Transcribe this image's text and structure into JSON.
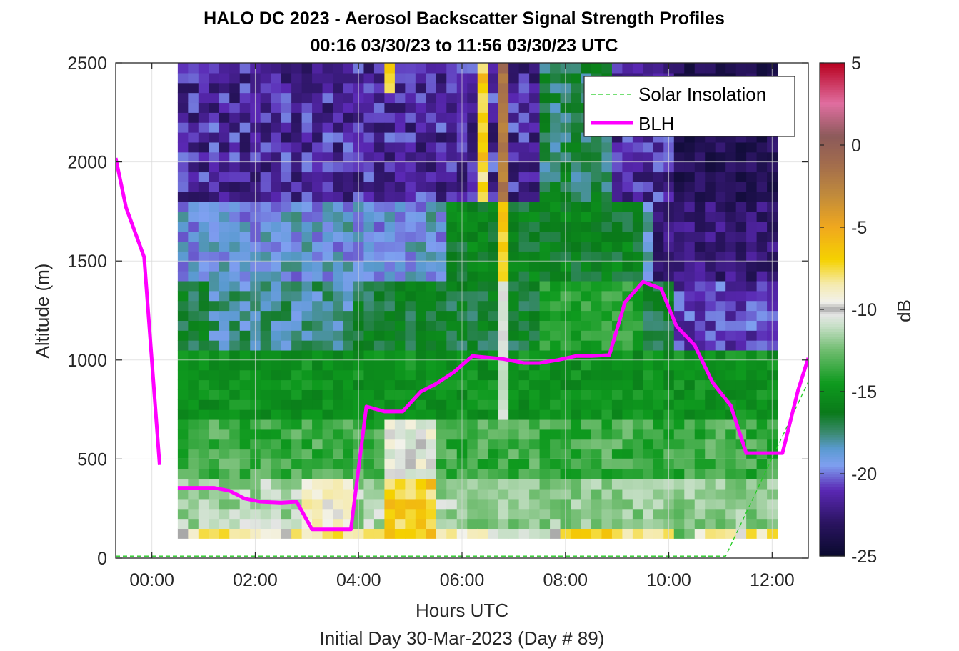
{
  "chart_data": {
    "type": "heatmap",
    "title": "HALO DC 2023 - Aerosol Backscatter Signal Strength Profiles",
    "subtitle": "00:16 03/30/23 to 11:56 03/30/23  UTC",
    "xlabel": "Hours UTC",
    "xlabel2": "Initial Day 30-Mar-2023 (Day # 89)",
    "ylabel": "Altitude (m)",
    "colorbar_label": "dB",
    "xlim": [
      -0.7,
      12.7
    ],
    "ylim": [
      0,
      2500
    ],
    "clim": [
      -25,
      5
    ],
    "grid": true,
    "legend_position": "top-right",
    "x_ticks": [
      {
        "value": 0,
        "label": "00:00"
      },
      {
        "value": 2,
        "label": "02:00"
      },
      {
        "value": 4,
        "label": "04:00"
      },
      {
        "value": 6,
        "label": "06:00"
      },
      {
        "value": 8,
        "label": "08:00"
      },
      {
        "value": 10,
        "label": "10:00"
      },
      {
        "value": 12,
        "label": "12:00"
      }
    ],
    "y_ticks": [
      {
        "value": 0,
        "label": "0"
      },
      {
        "value": 500,
        "label": "500"
      },
      {
        "value": 1000,
        "label": "1000"
      },
      {
        "value": 1500,
        "label": "1500"
      },
      {
        "value": 2000,
        "label": "2000"
      },
      {
        "value": 2500,
        "label": "2500"
      }
    ],
    "colorbar_ticks": [
      {
        "value": 5,
        "label": "5"
      },
      {
        "value": 0,
        "label": "0"
      },
      {
        "value": -5,
        "label": "-5"
      },
      {
        "value": -10,
        "label": "-10"
      },
      {
        "value": -15,
        "label": "-15"
      },
      {
        "value": -20,
        "label": "-20"
      },
      {
        "value": -25,
        "label": "-25"
      }
    ],
    "colormap": [
      {
        "value": -25,
        "color": "#0a0a2e"
      },
      {
        "value": -23,
        "color": "#2a1460"
      },
      {
        "value": -21,
        "color": "#5a28b4"
      },
      {
        "value": -19.5,
        "color": "#7ea0f0"
      },
      {
        "value": -18.5,
        "color": "#5a9ad0"
      },
      {
        "value": -17.5,
        "color": "#3a8a6e"
      },
      {
        "value": -16.3,
        "color": "#0a7a1a"
      },
      {
        "value": -14.5,
        "color": "#0e9a1e"
      },
      {
        "value": -12.5,
        "color": "#6ebc6e"
      },
      {
        "value": -11,
        "color": "#c8e0c8"
      },
      {
        "value": -10.3,
        "color": "#e6e6e6"
      },
      {
        "value": -10,
        "color": "#a8a8a8"
      },
      {
        "value": -9.6,
        "color": "#f2f2ec"
      },
      {
        "value": -8.5,
        "color": "#f5ebb0"
      },
      {
        "value": -7,
        "color": "#f5d200"
      },
      {
        "value": -5,
        "color": "#f0a81e"
      },
      {
        "value": -3,
        "color": "#c08a3c"
      },
      {
        "value": -1,
        "color": "#a06a4e"
      },
      {
        "value": 0.5,
        "color": "#8c5a5a"
      },
      {
        "value": 2.5,
        "color": "#e06ea0"
      },
      {
        "value": 5,
        "color": "#b8001e"
      }
    ],
    "heatmap_grid": {
      "x_start": 0.5,
      "x_step": 0.2,
      "y_start": 100,
      "y_step": 50,
      "notes_rows": "rows listed bottom (100-150 m) to top (2450-2500 m); columns every 0.2 h from 00:30 to 11:58; null = no data"
    },
    "series": [
      {
        "name": "BLH",
        "color": "#ff00ff",
        "segments": [
          [
            [
              -0.7,
              2020
            ],
            [
              -0.5,
              1770
            ],
            [
              -0.15,
              1520
            ],
            [
              0.15,
              470
            ]
          ],
          [
            [
              0.5,
              355
            ],
            [
              1.2,
              355
            ],
            [
              1.5,
              340
            ],
            [
              1.8,
              300
            ],
            [
              2.1,
              285
            ],
            [
              2.5,
              280
            ],
            [
              2.8,
              285
            ],
            [
              3.1,
              145
            ],
            [
              3.5,
              145
            ],
            [
              3.85,
              145
            ],
            [
              4.15,
              765
            ],
            [
              4.5,
              740
            ],
            [
              4.85,
              740
            ],
            [
              5.2,
              840
            ],
            [
              5.5,
              880
            ],
            [
              5.85,
              940
            ],
            [
              6.2,
              1020
            ],
            [
              6.8,
              1005
            ],
            [
              7.2,
              985
            ],
            [
              7.5,
              985
            ],
            [
              7.85,
              1000
            ],
            [
              8.2,
              1020
            ],
            [
              8.5,
              1020
            ],
            [
              8.85,
              1025
            ],
            [
              9.15,
              1290
            ],
            [
              9.5,
              1395
            ],
            [
              9.85,
              1360
            ],
            [
              10.15,
              1170
            ],
            [
              10.5,
              1075
            ],
            [
              10.85,
              885
            ],
            [
              11.2,
              770
            ],
            [
              11.5,
              530
            ],
            [
              12.2,
              530
            ],
            [
              12.5,
              845
            ],
            [
              12.7,
              1010
            ]
          ]
        ]
      },
      {
        "name": "Solar Insolation",
        "color": "#22cc22",
        "values": [
          [
            -0.7,
            10
          ],
          [
            11.1,
            10
          ],
          [
            12.7,
            890
          ]
        ]
      }
    ],
    "legend_entries": [
      {
        "label": "Solar Insolation",
        "style": "dashed",
        "color": "#22cc22"
      },
      {
        "label": "BLH",
        "style": "solid",
        "color": "#ff00ff"
      }
    ]
  }
}
